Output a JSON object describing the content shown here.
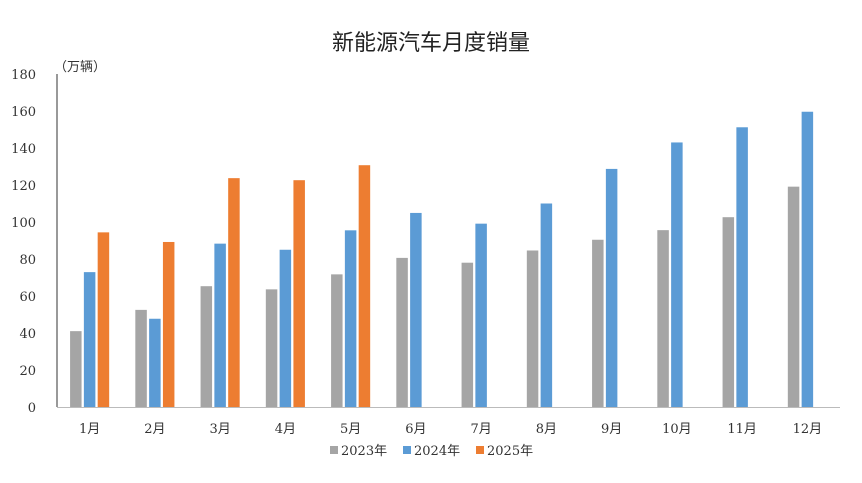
{
  "chart_data": {
    "type": "bar",
    "title": "新能源汽车月度销量",
    "ylabel": "（万辆）",
    "xlabel": "",
    "ylim": [
      0,
      180
    ],
    "yticks": [
      0,
      20,
      40,
      60,
      80,
      100,
      120,
      140,
      160,
      180
    ],
    "categories": [
      "1月",
      "2月",
      "3月",
      "4月",
      "5月",
      "6月",
      "7月",
      "8月",
      "9月",
      "10月",
      "11月",
      "12月"
    ],
    "series": [
      {
        "name": "2023年",
        "color": "#a5a5a5",
        "values": [
          41,
          52.5,
          65.3,
          63.6,
          71.7,
          80.6,
          78,
          84.6,
          90.4,
          95.6,
          102.6,
          119.1
        ]
      },
      {
        "name": "2024年",
        "color": "#5b9bd5",
        "values": [
          72.9,
          47.7,
          88.3,
          85,
          95.5,
          104.9,
          99.1,
          110,
          128.7,
          143,
          151.2,
          159.6
        ]
      },
      {
        "name": "2025年",
        "color": "#ed7d31",
        "values": [
          94.4,
          89.2,
          123.7,
          122.6,
          130.7,
          null,
          null,
          null,
          null,
          null,
          null,
          null
        ]
      }
    ],
    "grid": false,
    "legend": "bottom"
  }
}
